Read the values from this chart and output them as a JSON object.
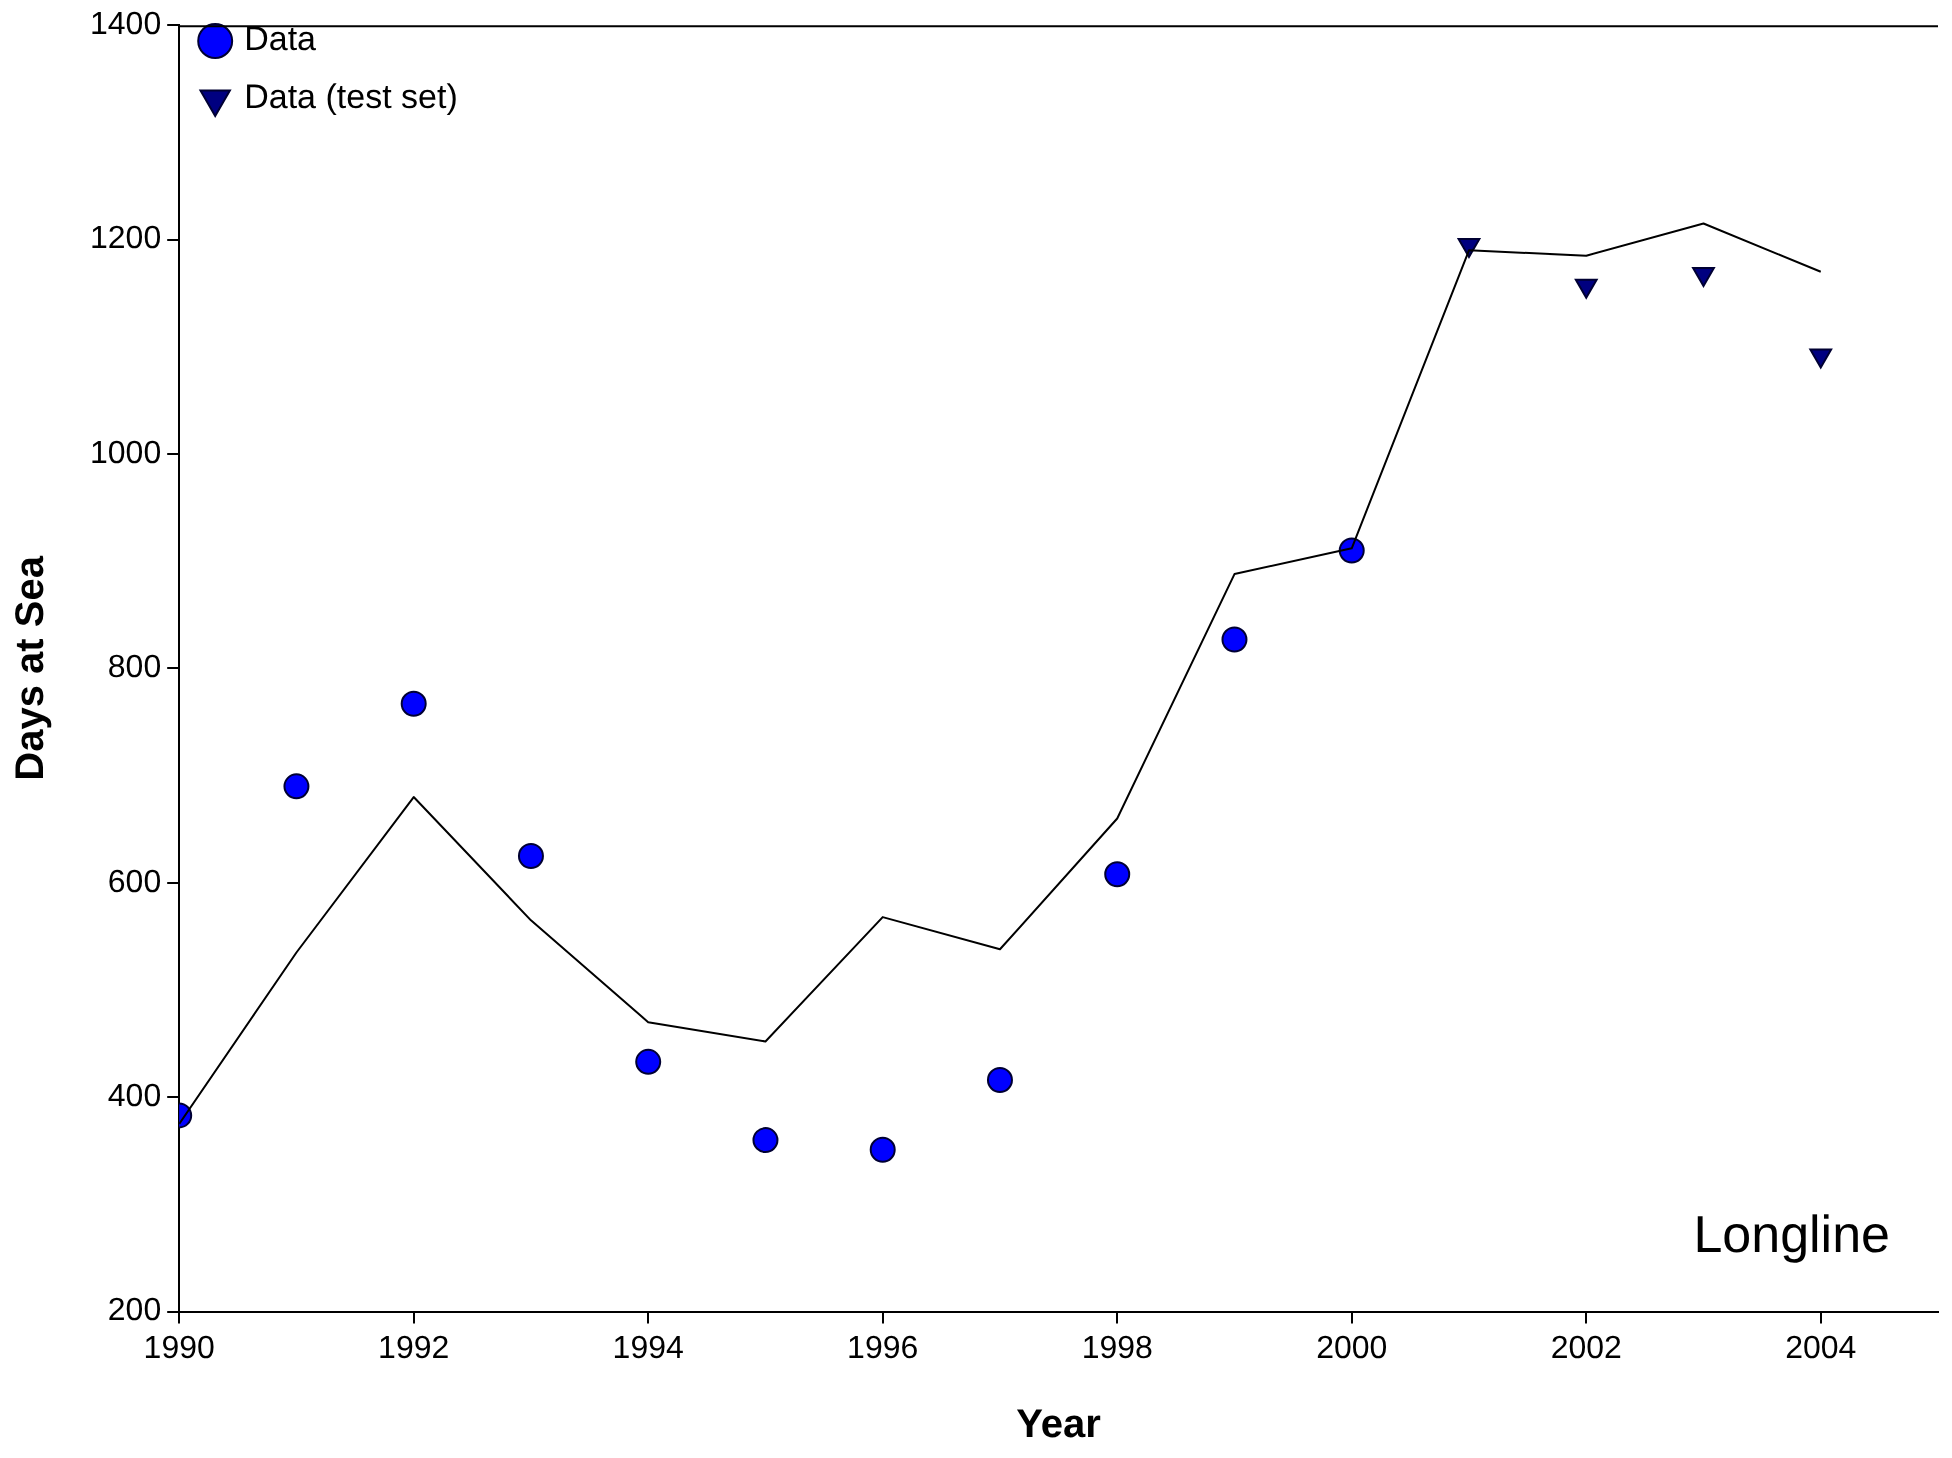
{
  "chart_data": {
    "type": "line",
    "xlabel": "Year",
    "ylabel": "Days at Sea",
    "xlim": [
      1990,
      2005
    ],
    "xticks": [
      1990,
      1992,
      1994,
      1996,
      1998,
      2000,
      2002,
      2004
    ],
    "ylim": [
      200,
      1400
    ],
    "yticks": [
      200,
      400,
      600,
      800,
      1000,
      1200,
      1400
    ],
    "grid": false,
    "legend": "top left",
    "annotations": [
      "Longline"
    ],
    "series": [
      {
        "type": "line",
        "color": "#000000",
        "marker": "none",
        "x": [
          1990,
          1991,
          1992,
          1993,
          1994,
          1995,
          1996,
          1997,
          1998,
          1999,
          2000,
          2001,
          2002,
          2003,
          2004
        ],
        "values": [
          375,
          535,
          680,
          565,
          470,
          452,
          568,
          538,
          660,
          888,
          912,
          1190,
          1185,
          1215,
          1170
        ]
      },
      {
        "type": "scatter",
        "name": "Data",
        "color": "#0000ff",
        "marker": "circle",
        "x": [
          1990,
          1991,
          1992,
          1993,
          1994,
          1995,
          1996,
          1997,
          1998,
          1999,
          2000
        ],
        "values": [
          383,
          690,
          767,
          625,
          433,
          360,
          351,
          416,
          608,
          827,
          910
        ]
      },
      {
        "type": "scatter",
        "name": "Data (test set)",
        "color": "#000080",
        "marker": "triangle",
        "x": [
          2001,
          2002,
          2003,
          2004
        ],
        "values": [
          1195,
          1157,
          1168,
          1092
        ]
      }
    ]
  }
}
